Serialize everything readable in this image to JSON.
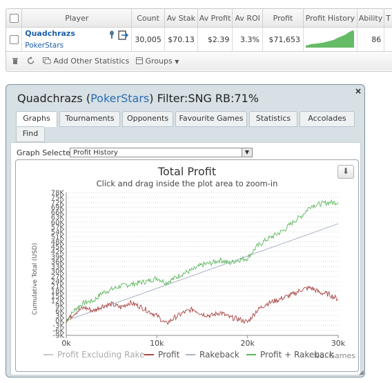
{
  "table": {
    "headers": [
      "Player",
      "Count",
      "Av Stak",
      "Av Profit",
      "Av ROI",
      "Profit",
      "Profit History",
      "Ability",
      "T"
    ],
    "row": {
      "player": "Quadchrazs",
      "site": "PokerStars",
      "count": "30,005",
      "av_stake": "$70.13",
      "av_profit": "$2.39",
      "av_roi": "3.3%",
      "profit": "$71,653",
      "ability": "86"
    }
  },
  "toolbar": {
    "add_stats": "Add Other Statistics",
    "groups": "Groups"
  },
  "popup": {
    "player": "Quadchrazs",
    "site": "PokerStars",
    "filter": "Filter:SNG RB:71%",
    "close": "×",
    "tabs": [
      "Graphs",
      "Tournaments",
      "Opponents",
      "Favourite Games",
      "Statistics",
      "Accolades",
      "Find"
    ],
    "graph_selected_label": "Graph Selected:",
    "graph_selected_value": "Profit History"
  },
  "colors": {
    "green": "#5cb85c",
    "red": "#a94442",
    "trend": "#aab4c8",
    "gray_series": "#c8c8c8"
  },
  "chart_data": {
    "type": "line",
    "title": "Total Profit",
    "subtitle": "Click and drag inside the plot area to zoom-in",
    "ylabel": "Cumulative Total (USD)",
    "xlabel": "No. Games",
    "x_ticks": [
      "0k",
      "10k",
      "20k",
      "30k"
    ],
    "xlim": [
      0,
      30000
    ],
    "ylim": [
      -9000,
      78000
    ],
    "y_ticks": [
      "78K",
      "75K",
      "72K",
      "69K",
      "66K",
      "63K",
      "60K",
      "57K",
      "54K",
      "51K",
      "48K",
      "45K",
      "42K",
      "39K",
      "36K",
      "33K",
      "30K",
      "27K",
      "24K",
      "21K",
      "18K",
      "15K",
      "12K",
      "9K",
      "6K",
      "3K",
      "0K",
      "-3K",
      "-6K",
      "-9K"
    ],
    "legend": [
      "Profit Excluding Rake",
      "Profit",
      "Rakeback",
      "Profit + Rakeback"
    ],
    "series": [
      {
        "name": "Rakeback",
        "color": "#aab4c8",
        "x": [
          0,
          30000
        ],
        "y": [
          0,
          59000
        ]
      },
      {
        "name": "Profit + Rakeback",
        "color": "#5cb85c",
        "x": [
          0,
          1000,
          2000,
          3000,
          4000,
          5000,
          6000,
          7000,
          8000,
          9000,
          10000,
          11000,
          12000,
          13000,
          14000,
          15000,
          16000,
          17000,
          18000,
          19000,
          20000,
          21000,
          22000,
          23000,
          24000,
          25000,
          26000,
          27000,
          28000,
          29000,
          30000
        ],
        "y": [
          0,
          7000,
          11000,
          12000,
          17000,
          19000,
          21000,
          22000,
          23000,
          24000,
          26000,
          23000,
          26000,
          29000,
          31000,
          34000,
          35000,
          37000,
          35000,
          37000,
          38000,
          45000,
          49000,
          52000,
          55000,
          60000,
          64000,
          70000,
          71000,
          72000,
          72000
        ]
      },
      {
        "name": "Profit",
        "color": "#a94442",
        "x": [
          0,
          1000,
          2000,
          3000,
          4000,
          5000,
          6000,
          7000,
          8000,
          9000,
          10000,
          11000,
          12000,
          13000,
          14000,
          15000,
          16000,
          17000,
          18000,
          19000,
          20000,
          21000,
          22000,
          23000,
          24000,
          25000,
          26000,
          27000,
          28000,
          29000,
          30000
        ],
        "y": [
          0,
          5000,
          8000,
          6000,
          9000,
          10000,
          8000,
          11000,
          9000,
          6000,
          3000,
          -2000,
          2000,
          5000,
          7000,
          4000,
          3000,
          5000,
          2000,
          1000,
          -1000,
          6000,
          10000,
          12000,
          14000,
          16000,
          19000,
          20000,
          17000,
          16000,
          13000
        ]
      }
    ]
  }
}
